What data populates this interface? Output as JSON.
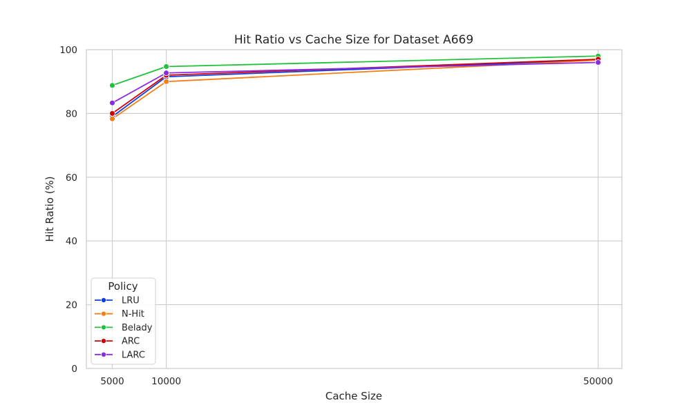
{
  "chart_data": {
    "type": "line",
    "title": "Hit Ratio vs Cache Size for Dataset A669",
    "xlabel": "Cache Size",
    "ylabel": "Hit Ratio (%)",
    "x": [
      5000,
      10000,
      50000
    ],
    "x_tick_labels": [
      "5000",
      "10000",
      "50000"
    ],
    "xlim": [
      2600,
      52200
    ],
    "ylim": [
      0,
      100
    ],
    "y_ticks": [
      0,
      20,
      40,
      60,
      80,
      100
    ],
    "y_tick_labels": [
      "0",
      "20",
      "40",
      "60",
      "80",
      "100"
    ],
    "grid": true,
    "legend": {
      "title": "Policy",
      "placement": "lower-left"
    },
    "series": [
      {
        "name": "LRU",
        "color": "#0d3fdc",
        "values": [
          79.0,
          91.5,
          96.8
        ]
      },
      {
        "name": "N-Hit",
        "color": "#f57f16",
        "values": [
          78.3,
          90.0,
          96.7
        ]
      },
      {
        "name": "Belady",
        "color": "#20c23c",
        "values": [
          88.8,
          94.7,
          98.0
        ]
      },
      {
        "name": "ARC",
        "color": "#d10003",
        "values": [
          80.0,
          92.0,
          97.0
        ]
      },
      {
        "name": "LARC",
        "color": "#8a2be2",
        "values": [
          83.3,
          92.7,
          96.0
        ]
      }
    ]
  }
}
